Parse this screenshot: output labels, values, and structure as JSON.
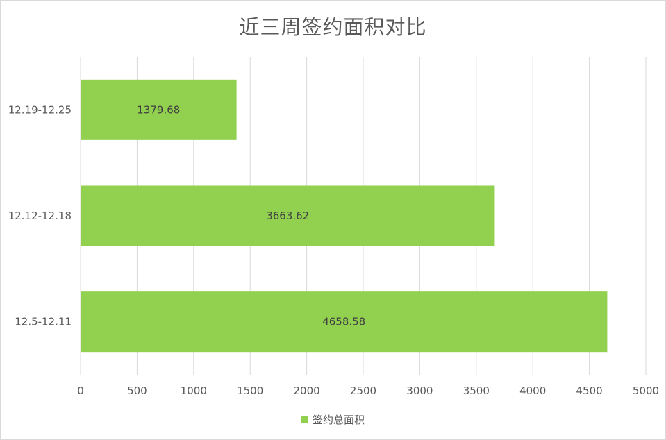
{
  "chart_data": {
    "type": "bar",
    "orientation": "horizontal",
    "title": "近三周签约面积对比",
    "categories": [
      "12.5-12.11",
      "12.12-12.18",
      "12.19-12.25"
    ],
    "series": [
      {
        "name": "签约总面积",
        "values": [
          4658.58,
          3663.62,
          1379.68
        ],
        "data_labels": [
          "4658.58",
          "3663.62",
          "1379.68"
        ],
        "color": "#92d050"
      }
    ],
    "xlim": [
      0,
      5000
    ],
    "x_ticks": [
      0,
      500,
      1000,
      1500,
      2000,
      2500,
      3000,
      3500,
      4000,
      4500,
      5000
    ],
    "grid": true,
    "legend_position": "bottom",
    "colors": {
      "gridline": "#d9d9d9",
      "text": "#595959"
    }
  }
}
